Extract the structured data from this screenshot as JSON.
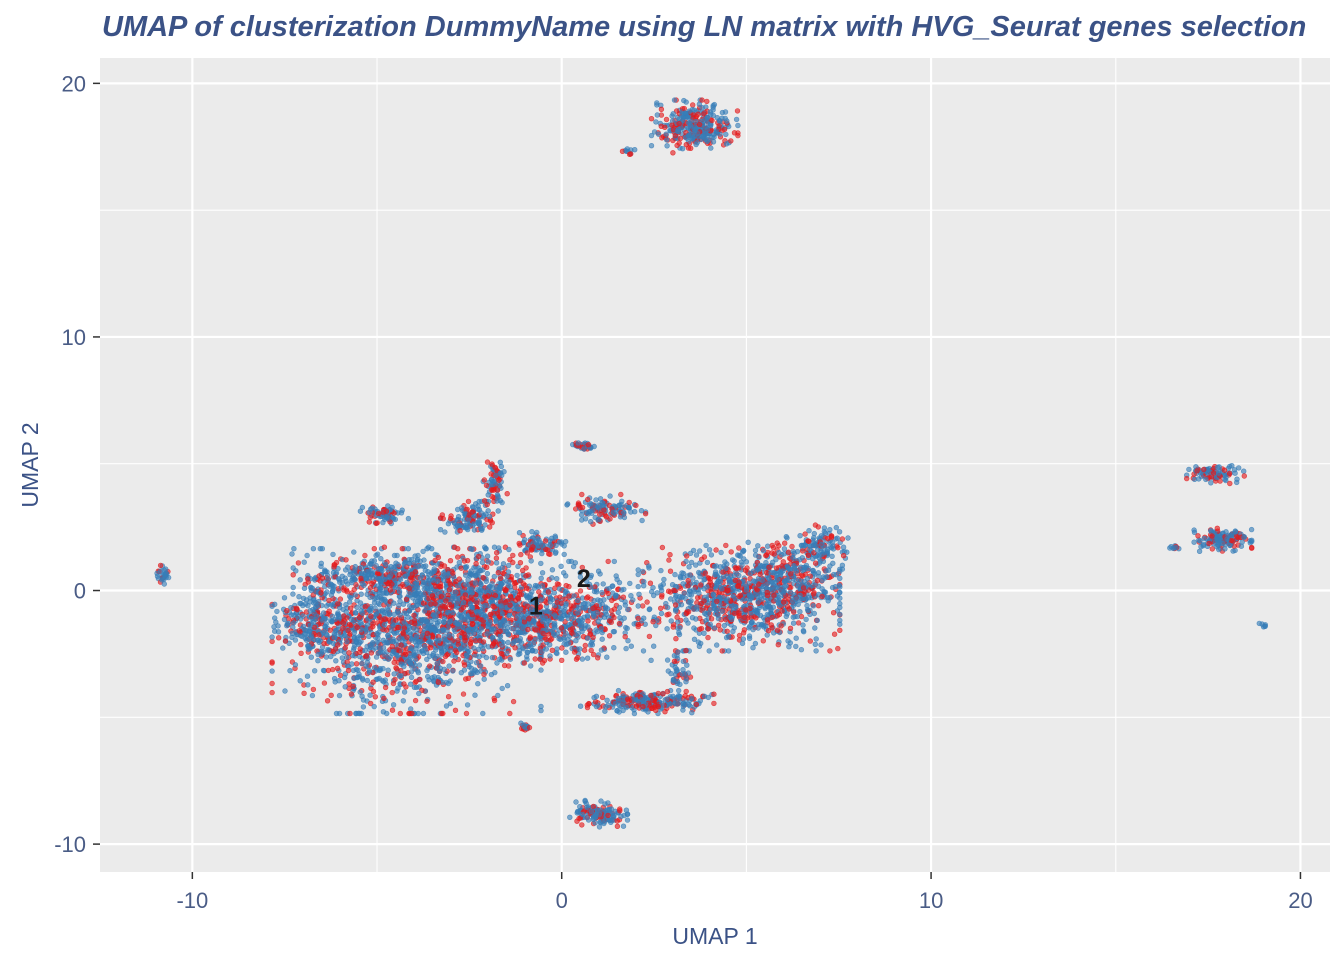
{
  "chart_data": {
    "type": "scatter",
    "title": "UMAP of clusterization DummyName using LN matrix with HVG_Seurat genes selection",
    "xlabel": "UMAP 1",
    "ylabel": "UMAP 2",
    "xlim": [
      -12.5,
      20.8
    ],
    "ylim": [
      -11.1,
      21.0
    ],
    "x_ticks": [
      -10,
      0,
      10,
      20
    ],
    "y_ticks": [
      -10,
      0,
      10,
      20
    ],
    "x_tick_labels": [
      "-10",
      "0",
      "10",
      "20"
    ],
    "y_tick_labels": [
      "-10",
      "0",
      "10",
      "20"
    ],
    "grid": true,
    "legend": "none",
    "colors": {
      "panel_background": "#ebebeb",
      "grid": "#ffffff",
      "cluster_1": "#e41a1c",
      "cluster_2": "#377eb8"
    },
    "series": [
      {
        "cluster": "1",
        "color": "#e41a1c"
      },
      {
        "cluster": "2",
        "color": "#377eb8"
      }
    ],
    "cluster_labels": [
      {
        "text": "1",
        "x": -0.7,
        "y": -0.6
      },
      {
        "text": "2",
        "x": 0.6,
        "y": 0.5
      }
    ],
    "point_groups": [
      {
        "cx": -4.2,
        "cy": -1.6,
        "rx": 2.8,
        "ry": 2.5,
        "n": 1500
      },
      {
        "cx": -2.2,
        "cy": -0.5,
        "rx": 2.0,
        "ry": 1.7,
        "n": 700
      },
      {
        "cx": -6.6,
        "cy": -1.2,
        "rx": 0.9,
        "ry": 1.1,
        "n": 220
      },
      {
        "cx": -0.6,
        "cy": -1.3,
        "rx": 1.4,
        "ry": 1.2,
        "n": 340
      },
      {
        "cx": -4.8,
        "cy": 0.6,
        "rx": 1.9,
        "ry": 0.6,
        "n": 260
      },
      {
        "cx": 0.8,
        "cy": -0.8,
        "rx": 1.3,
        "ry": 1.5,
        "n": 260
      },
      {
        "cx": 4.8,
        "cy": -0.3,
        "rx": 2.1,
        "ry": 1.6,
        "n": 900
      },
      {
        "cx": 6.3,
        "cy": 0.6,
        "rx": 1.0,
        "ry": 1.2,
        "n": 260
      },
      {
        "cx": 7.1,
        "cy": 1.8,
        "rx": 0.5,
        "ry": 0.6,
        "n": 90
      },
      {
        "cx": 2.3,
        "cy": -4.4,
        "rx": 1.4,
        "ry": 0.35,
        "n": 240
      },
      {
        "cx": 3.2,
        "cy": -3.3,
        "rx": 0.3,
        "ry": 0.9,
        "n": 50
      },
      {
        "cx": 1.1,
        "cy": 3.2,
        "rx": 0.9,
        "ry": 0.45,
        "n": 120
      },
      {
        "cx": -0.6,
        "cy": 1.8,
        "rx": 0.7,
        "ry": 0.4,
        "n": 90
      },
      {
        "cx": -2.5,
        "cy": 2.8,
        "rx": 0.6,
        "ry": 0.55,
        "n": 120
      },
      {
        "cx": -1.8,
        "cy": 4.3,
        "rx": 0.25,
        "ry": 0.7,
        "n": 70
      },
      {
        "cx": -4.8,
        "cy": 3.0,
        "rx": 0.5,
        "ry": 0.3,
        "n": 70
      },
      {
        "cx": 3.6,
        "cy": 18.3,
        "rx": 0.9,
        "ry": 0.8,
        "n": 320
      },
      {
        "cx": 1.8,
        "cy": 17.3,
        "rx": 0.2,
        "ry": 0.1,
        "n": 10
      },
      {
        "cx": 0.6,
        "cy": 5.7,
        "rx": 0.3,
        "ry": 0.15,
        "n": 35
      },
      {
        "cx": 1.0,
        "cy": -8.8,
        "rx": 0.6,
        "ry": 0.4,
        "n": 130
      },
      {
        "cx": -1.0,
        "cy": -5.4,
        "rx": 0.15,
        "ry": 0.15,
        "n": 15
      },
      {
        "cx": -10.8,
        "cy": 0.6,
        "rx": 0.15,
        "ry": 0.3,
        "n": 30
      },
      {
        "cx": 17.7,
        "cy": 4.6,
        "rx": 0.6,
        "ry": 0.3,
        "n": 90
      },
      {
        "cx": 17.9,
        "cy": 2.0,
        "rx": 0.6,
        "ry": 0.35,
        "n": 140
      },
      {
        "cx": 16.6,
        "cy": 1.7,
        "rx": 0.15,
        "ry": 0.1,
        "n": 10
      },
      {
        "cx": 19.0,
        "cy": -1.4,
        "rx": 0.1,
        "ry": 0.08,
        "n": 6
      }
    ]
  }
}
